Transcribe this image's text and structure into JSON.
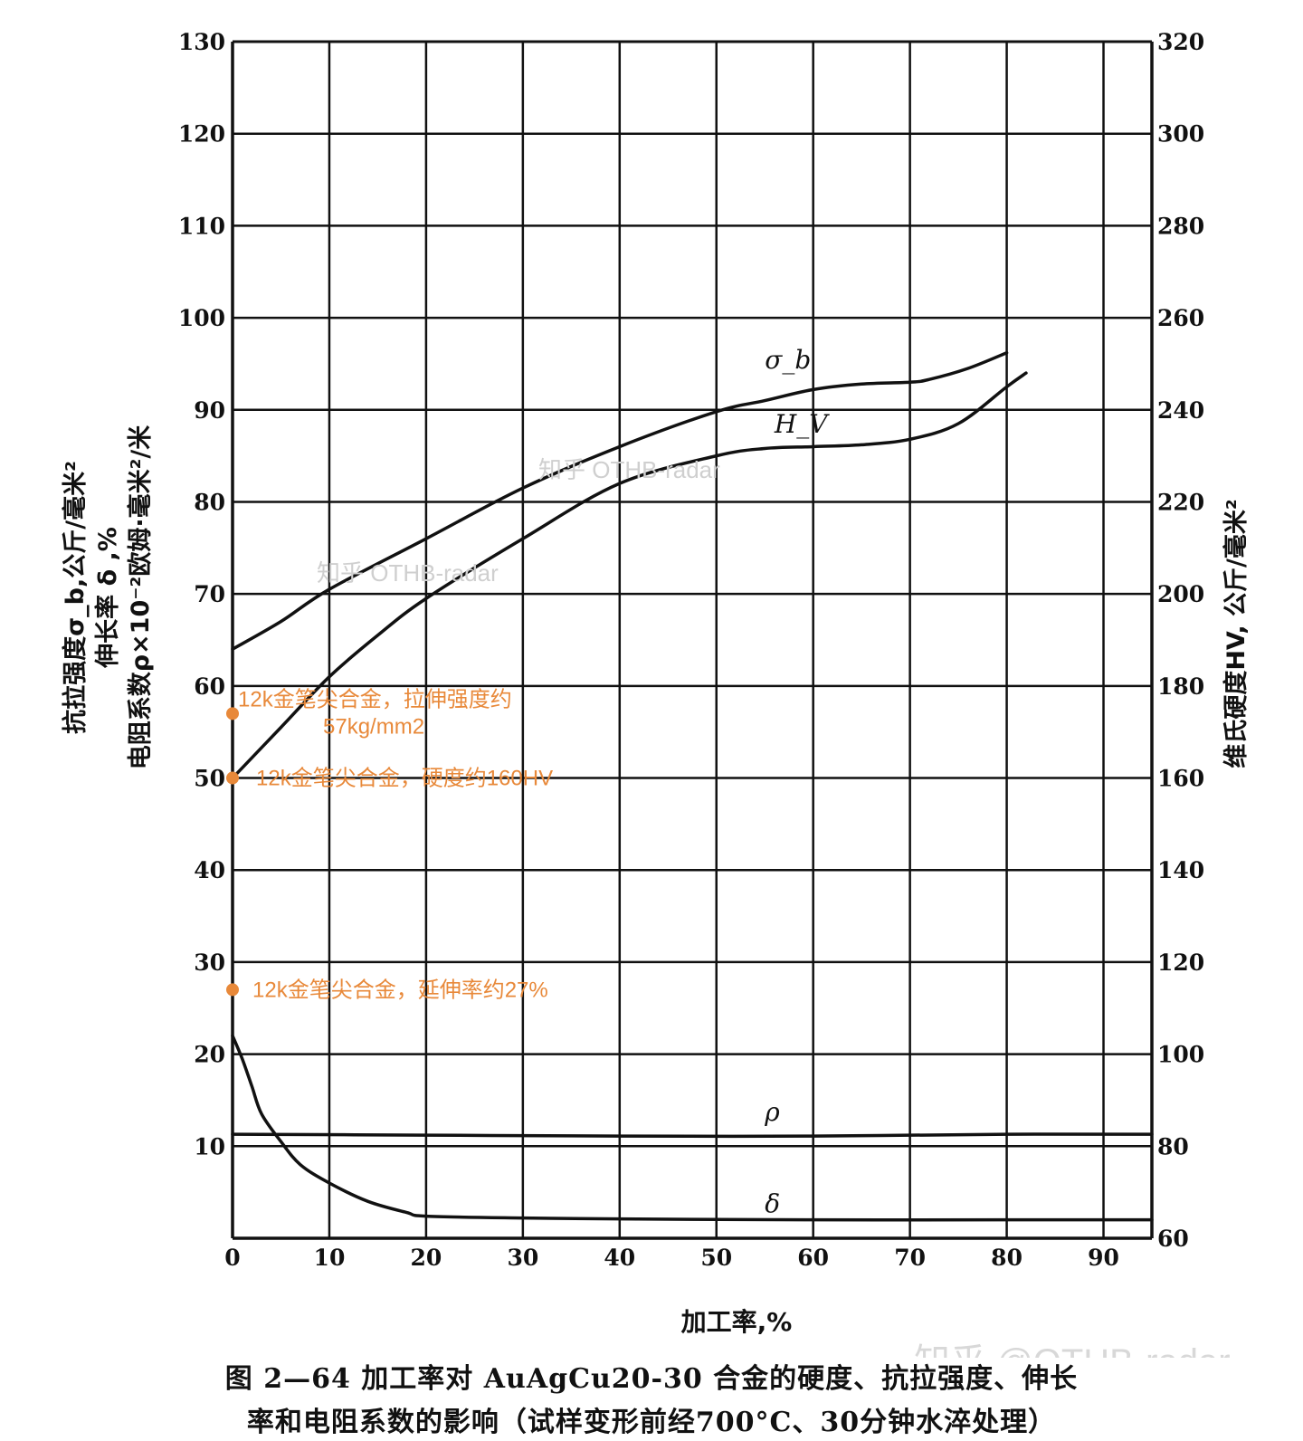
{
  "chart_data": {
    "type": "line",
    "xlabel": "加工率,%",
    "ylabel_left": [
      "抗拉强度σ_b,公斤/毫米²",
      "伸长率 δ ,%",
      "电阻系数ρ×10⁻²欧姆·毫米²/米"
    ],
    "ylabel_right": "维氏硬度HV, 公斤/毫米²",
    "xlim": [
      0,
      95
    ],
    "ylim_left": [
      0,
      130
    ],
    "ylim_right": [
      60,
      320
    ],
    "x_ticks": [
      0,
      10,
      20,
      30,
      40,
      50,
      60,
      70,
      80,
      90
    ],
    "y_left_ticks": [
      "10",
      "20",
      "30",
      "40",
      "50",
      "60",
      "70",
      "80",
      "90",
      "100",
      "110",
      "120",
      "130"
    ],
    "y_right_ticks": [
      "60",
      "80",
      "100",
      "120",
      "140",
      "160",
      "180",
      "200",
      "220",
      "240",
      "260",
      "280",
      "300",
      "320"
    ],
    "grid": true,
    "series": [
      {
        "name": "σ_b",
        "axis": "left",
        "x": [
          0,
          5,
          10,
          20,
          30,
          40,
          50,
          55,
          60,
          65,
          70,
          72,
          76,
          80
        ],
        "y": [
          64,
          67,
          70.5,
          76,
          81.5,
          86,
          89.8,
          91,
          92.2,
          92.8,
          93,
          93.3,
          94.5,
          96.2
        ]
      },
      {
        "name": "H_V",
        "axis": "left",
        "x": [
          0,
          5,
          10,
          15,
          20,
          30,
          40,
          50,
          55,
          60,
          65,
          70,
          75,
          80,
          82
        ],
        "y": [
          50,
          55.5,
          61,
          65.5,
          69.5,
          76,
          82,
          85,
          85.8,
          86,
          86.2,
          86.8,
          88.5,
          92.5,
          94
        ]
      },
      {
        "name": "ρ",
        "axis": "left",
        "x": [
          0,
          20,
          40,
          60,
          80,
          95
        ],
        "y": [
          11.3,
          11.2,
          11.1,
          11.1,
          11.3,
          11.3
        ]
      },
      {
        "name": "δ",
        "axis": "left",
        "x": [
          0,
          1,
          2,
          3,
          5,
          7,
          10,
          14,
          18,
          20,
          30,
          40,
          60,
          80,
          95
        ],
        "y": [
          22,
          19.5,
          16.5,
          13.5,
          10.5,
          8,
          6,
          4,
          2.8,
          2.4,
          2.2,
          2.1,
          2,
          2,
          2
        ]
      }
    ],
    "curve_labels": [
      "σ_b",
      "H_V",
      "ρ",
      "δ"
    ],
    "annotations": [
      {
        "x": 0,
        "y": 57,
        "text_lines": [
          "12k金笔尖合金，拉伸强度约",
          "57kg/mm2"
        ]
      },
      {
        "x": 0,
        "y": 50,
        "text_lines": [
          "12k金笔尖合金，硬度约160HV"
        ]
      },
      {
        "x": 0,
        "y": 27,
        "text_lines": [
          "12k金笔尖合金，延伸率约27%"
        ]
      }
    ],
    "annotation_color": "#e8893a",
    "line_color": "#111111"
  },
  "caption": {
    "line1": "图 2—64  加工率对 AuAgCu20-30 合金的硬度、抗拉强度、伸长",
    "line2": "率和电阻系数的影响（试样变形前经700°C、30分钟水淬处理）"
  },
  "watermarks": [
    "知乎 @OTHB-radar",
    "知乎 OTHB-radar",
    "知乎 OTHB-radar"
  ]
}
